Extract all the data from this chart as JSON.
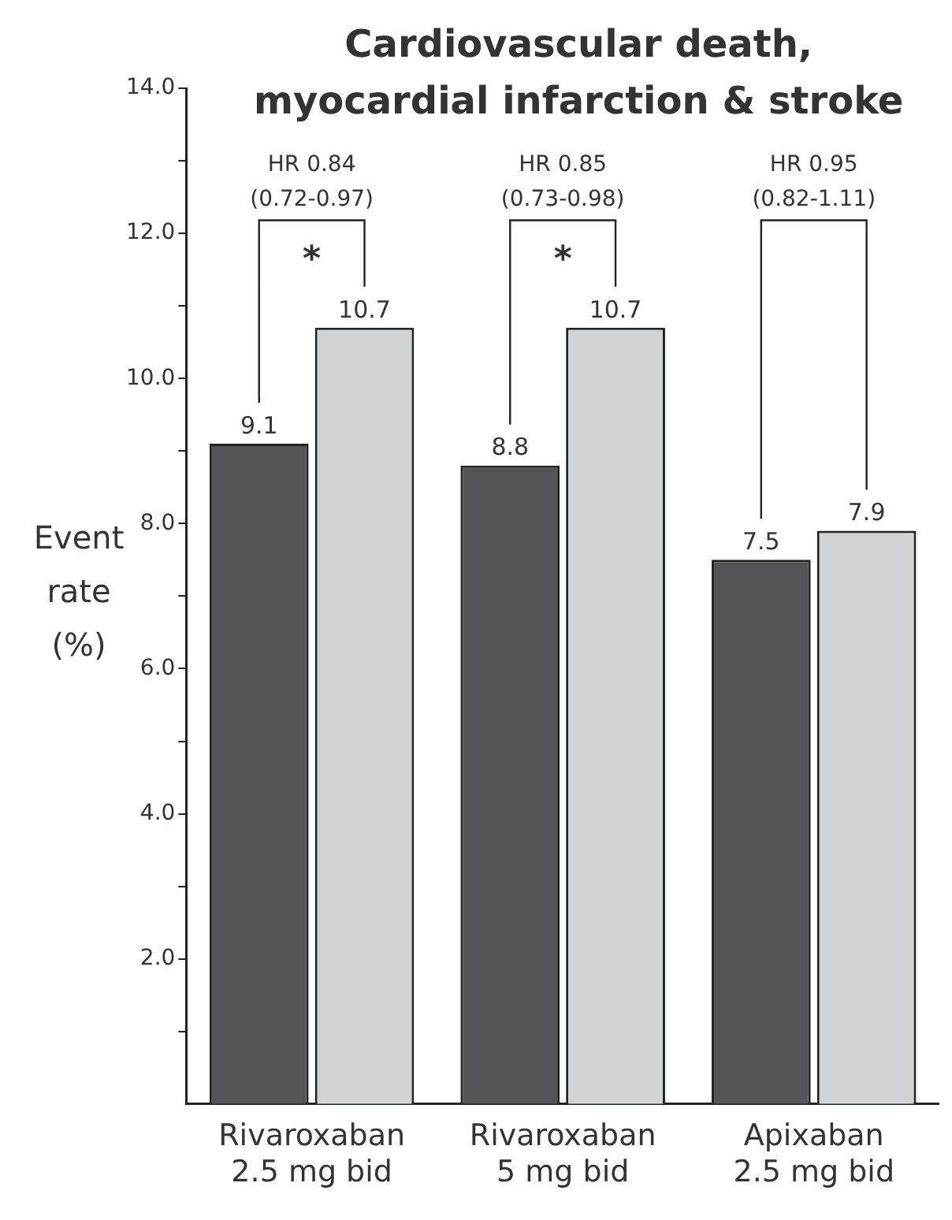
{
  "chart_data": {
    "type": "bar",
    "title": "Cardiovascular death,\nmyocardial infarction & stroke",
    "ylabel": "Event\nrate\n(%)",
    "categories": [
      "Rivaroxaban\n2.5 mg bid",
      "Rivaroxaban\n5 mg bid",
      "Apixaban\n2.5 mg bid"
    ],
    "series": [
      {
        "color": "#555558",
        "values": [
          9.1,
          8.8,
          7.5
        ]
      },
      {
        "color": "#d1d2d4",
        "values": [
          10.7,
          10.7,
          7.9
        ]
      }
    ],
    "ylim": [
      0,
      14
    ],
    "yticks": [
      {
        "value": 1,
        "label": null
      },
      {
        "value": 2,
        "label": "2.0"
      },
      {
        "value": 3,
        "label": null
      },
      {
        "value": 4,
        "label": "4.0"
      },
      {
        "value": 5,
        "label": null
      },
      {
        "value": 6,
        "label": "6.0"
      },
      {
        "value": 7,
        "label": null
      },
      {
        "value": 8,
        "label": "8.0"
      },
      {
        "value": 9,
        "label": null
      },
      {
        "value": 10,
        "label": "10.0"
      },
      {
        "value": 11,
        "label": null
      },
      {
        "value": 12,
        "label": "12.0"
      },
      {
        "value": 13,
        "label": null
      },
      {
        "value": 14,
        "label": "14.0"
      }
    ],
    "data_labels": true,
    "grid": false,
    "legend": false,
    "annotations": [
      "HR 0.84\n(0.72-0.97)",
      "HR 0.85\n(0.73-0.98)",
      "HR 0.95\n(0.82-1.11)",
      "*",
      "*"
    ]
  }
}
